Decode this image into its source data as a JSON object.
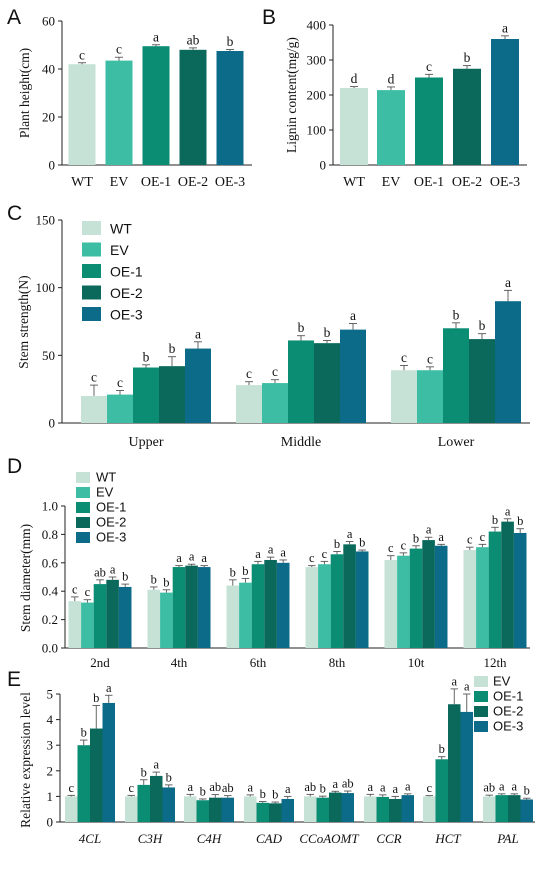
{
  "chart_data": [
    {
      "panel": "A",
      "type": "bar",
      "categories": [
        "WT",
        "EV",
        "OE-1",
        "OE-2",
        "OE-3"
      ],
      "values": [
        42,
        43.5,
        49.5,
        48,
        47.5
      ],
      "errors": [
        0.6,
        1.4,
        0.6,
        0.8,
        0.6
      ],
      "letters": [
        "c",
        "c",
        "a",
        "ab",
        "b"
      ],
      "colors": [
        "#c6e2d7",
        "#3dbea4",
        "#0b8d73",
        "#0a695b",
        "#0c6b88"
      ],
      "ylabel": "Plant height(cm)",
      "ylim": [
        0,
        60
      ],
      "yticks": [
        "0",
        "20",
        "40",
        "60"
      ],
      "grid": false
    },
    {
      "panel": "B",
      "type": "bar",
      "categories": [
        "WT",
        "EV",
        "OE-1",
        "OE-2",
        "OE-3"
      ],
      "values": [
        220,
        214,
        250,
        275,
        360
      ],
      "errors": [
        4,
        9,
        9,
        9,
        9
      ],
      "letters": [
        "d",
        "d",
        "c",
        "b",
        "a"
      ],
      "colors": [
        "#c6e2d7",
        "#3dbea4",
        "#0b8d73",
        "#0a695b",
        "#0c6b88"
      ],
      "ylabel": "Lignin content(mg/g)",
      "ylim": [
        0,
        400
      ],
      "yticks": [
        "0",
        "100",
        "200",
        "300",
        "400"
      ],
      "grid": false
    },
    {
      "panel": "C",
      "type": "bar",
      "categories": [
        "Upper",
        "Middle",
        "Lower"
      ],
      "series": [
        {
          "name": "WT",
          "color": "#c6e2d7",
          "values": [
            20,
            28,
            39
          ],
          "errors": [
            8,
            2.5,
            3.5
          ],
          "letters": [
            "c",
            "c",
            "c"
          ]
        },
        {
          "name": "EV",
          "color": "#3dbea4",
          "values": [
            21,
            29.5,
            39
          ],
          "errors": [
            3,
            2.5,
            2.5
          ],
          "letters": [
            "c",
            "c",
            "c"
          ]
        },
        {
          "name": "OE-1",
          "color": "#0b8d73",
          "values": [
            41,
            61,
            70
          ],
          "errors": [
            2,
            3.5,
            4
          ],
          "letters": [
            "b",
            "b",
            "b"
          ]
        },
        {
          "name": "OE-2",
          "color": "#0a695b",
          "values": [
            42,
            59,
            62
          ],
          "errors": [
            7,
            2,
            4
          ],
          "letters": [
            "b",
            "b",
            "b"
          ]
        },
        {
          "name": "OE-3",
          "color": "#0c6b88",
          "values": [
            55,
            69,
            90
          ],
          "errors": [
            5,
            4.5,
            8
          ],
          "letters": [
            "a",
            "a",
            "a"
          ]
        }
      ],
      "ylabel": "Stem strength(N)",
      "ylim": [
        0,
        150
      ],
      "yticks": [
        "0",
        "50",
        "100",
        "150"
      ],
      "legend_position": "top-left",
      "grid": false
    },
    {
      "panel": "D",
      "type": "bar",
      "categories": [
        "2nd",
        "4th",
        "6th",
        "8th",
        "10t",
        "12th"
      ],
      "series": [
        {
          "name": "WT",
          "color": "#c6e2d7",
          "values": [
            0.33,
            0.41,
            0.44,
            0.57,
            0.62,
            0.69
          ],
          "errors": [
            0.03,
            0.02,
            0.04,
            0.01,
            0.03,
            0.02
          ],
          "letters": [
            "c",
            "b",
            "b",
            "c",
            "c",
            "c"
          ]
        },
        {
          "name": "EV",
          "color": "#3dbea4",
          "values": [
            0.32,
            0.39,
            0.46,
            0.59,
            0.65,
            0.71
          ],
          "errors": [
            0.02,
            0.02,
            0.03,
            0.02,
            0.02,
            0.02
          ],
          "letters": [
            "c",
            "b",
            "b",
            "c",
            "c",
            "c"
          ]
        },
        {
          "name": "OE-1",
          "color": "#0b8d73",
          "values": [
            0.45,
            0.57,
            0.59,
            0.66,
            0.7,
            0.82
          ],
          "errors": [
            0.03,
            0.01,
            0.02,
            0.02,
            0.02,
            0.03
          ],
          "letters": [
            "ab",
            "a",
            "a",
            "b",
            "b",
            "b"
          ]
        },
        {
          "name": "OE-2",
          "color": "#0a695b",
          "values": [
            0.48,
            0.58,
            0.62,
            0.73,
            0.76,
            0.89
          ],
          "errors": [
            0.02,
            0.01,
            0.02,
            0.02,
            0.02,
            0.02
          ],
          "letters": [
            "a",
            "a",
            "a",
            "a",
            "a",
            "a"
          ]
        },
        {
          "name": "OE-3",
          "color": "#0c6b88",
          "values": [
            0.43,
            0.57,
            0.6,
            0.68,
            0.72,
            0.81
          ],
          "errors": [
            0.02,
            0.01,
            0.02,
            0.01,
            0.01,
            0.03
          ],
          "letters": [
            "b",
            "a",
            "a",
            "b",
            "a",
            "b"
          ]
        }
      ],
      "ylabel": "Stem diameter(mm)",
      "ylim": [
        0,
        1.0
      ],
      "yticks": [
        "0.0",
        "0.2",
        "0.4",
        "0.6",
        "0.8",
        "1.0"
      ],
      "legend_position": "top-left",
      "grid": false
    },
    {
      "panel": "E",
      "type": "bar",
      "categories": [
        "4CL",
        "C3H",
        "C4H",
        "CAD",
        "CCoAOMT",
        "CCR",
        "HCT",
        "PAL"
      ],
      "series": [
        {
          "name": "EV",
          "color": "#c6e2d7",
          "values": [
            1.0,
            1.0,
            1.0,
            1.0,
            1.0,
            1.0,
            1.0,
            1.0
          ],
          "errors": [
            0.04,
            0.04,
            0.08,
            0.06,
            0.08,
            0.08,
            0.03,
            0.05
          ],
          "letters": [
            "c",
            "c",
            "a",
            "a",
            "ab",
            "a",
            "c",
            "ab"
          ]
        },
        {
          "name": "OE-1",
          "color": "#0b8d73",
          "values": [
            3.0,
            1.45,
            0.85,
            0.75,
            0.95,
            0.98,
            2.45,
            1.05
          ],
          "errors": [
            0.2,
            0.2,
            0.05,
            0.05,
            0.06,
            0.08,
            0.1,
            0.05
          ],
          "letters": [
            "b",
            "b",
            "b",
            "b",
            "b",
            "a",
            "b",
            "a"
          ]
        },
        {
          "name": "OE-2",
          "color": "#0a695b",
          "values": [
            3.65,
            1.8,
            0.95,
            0.73,
            1.15,
            0.9,
            4.6,
            1.05
          ],
          "errors": [
            0.9,
            0.15,
            0.12,
            0.05,
            0.05,
            0.1,
            0.6,
            0.05
          ],
          "letters": [
            "b",
            "a",
            "ab",
            "b",
            "a",
            "a",
            "a",
            "a"
          ]
        },
        {
          "name": "OE-3",
          "color": "#0c6b88",
          "values": [
            4.65,
            1.35,
            0.95,
            0.9,
            1.13,
            1.05,
            4.3,
            0.88
          ],
          "errors": [
            0.3,
            0.1,
            0.08,
            0.1,
            0.08,
            0.05,
            0.7,
            0.05
          ],
          "letters": [
            "a",
            "b",
            "ab",
            "a",
            "ab",
            "a",
            "a",
            "b"
          ]
        }
      ],
      "ylabel": "Relative expression level",
      "ylim": [
        0,
        5
      ],
      "yticks": [
        "0",
        "1",
        "2",
        "3",
        "4",
        "5"
      ],
      "legend_position": "top-right",
      "grid": false
    }
  ]
}
